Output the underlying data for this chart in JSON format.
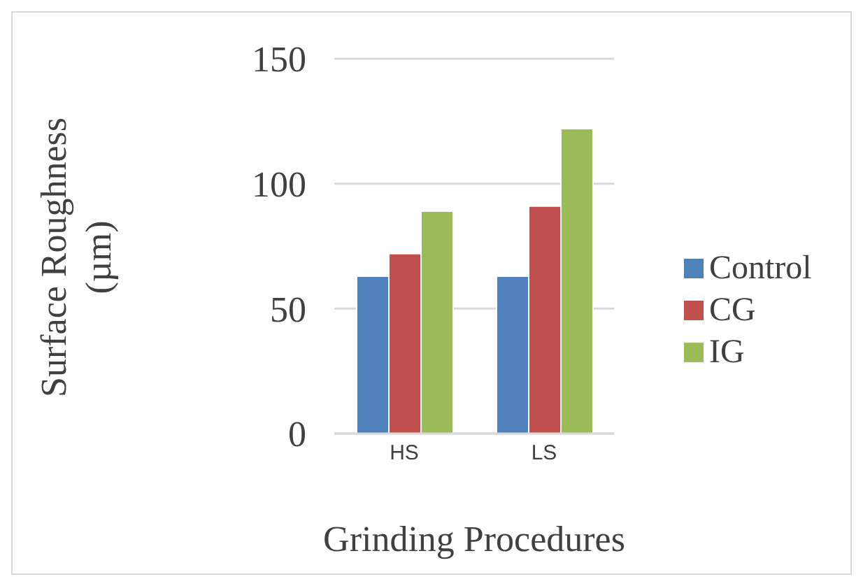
{
  "chart_data": {
    "type": "bar",
    "xlabel": "Grinding Procedures",
    "ylabel": "Surface Roughness (µm)",
    "categories": [
      "HS",
      "LS"
    ],
    "series": [
      {
        "name": "Control",
        "color": "#4f81bd",
        "values": [
          63,
          63
        ]
      },
      {
        "name": "CG",
        "color": "#c0504d",
        "values": [
          72,
          91
        ]
      },
      {
        "name": "IG",
        "color": "#9bbb59",
        "values": [
          89,
          122
        ]
      }
    ],
    "ylim": [
      0,
      150
    ],
    "yticks": [
      0,
      50,
      100,
      150
    ],
    "grid": "y",
    "legend": "right"
  }
}
